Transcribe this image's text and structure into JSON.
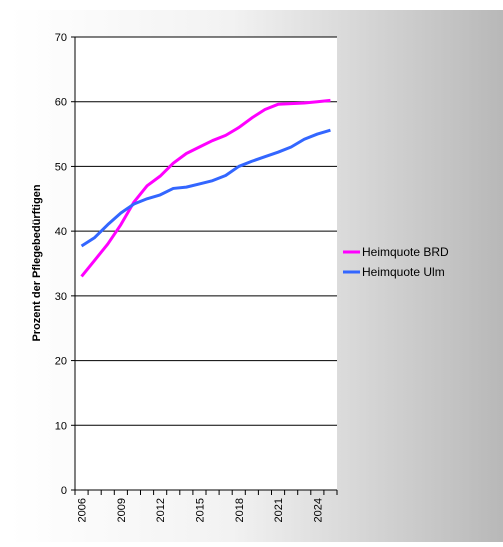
{
  "chart_data": {
    "type": "line",
    "y_label": "Prozent der Pflegebedürftigen",
    "categories": [
      "2006",
      null,
      null,
      "2009",
      null,
      null,
      "2012",
      null,
      null,
      "2015",
      null,
      null,
      "2018",
      null,
      null,
      "2021",
      null,
      null,
      "2024",
      null
    ],
    "series": [
      {
        "name": "Heimquote BRD",
        "color": "#ff00ff",
        "values": [
          33,
          35.5,
          38,
          41,
          44.5,
          47,
          48.5,
          50.5,
          52,
          53,
          54,
          54.8,
          56,
          57.5,
          58.8,
          59.6,
          59.7,
          59.8,
          60,
          60.2
        ]
      },
      {
        "name": "Heimquote Ulm",
        "color": "#3366ff",
        "values": [
          37.7,
          39,
          41,
          42.8,
          44.2,
          45,
          45.6,
          46.6,
          46.8,
          47.3,
          47.8,
          48.6,
          50,
          50.8,
          51.5,
          52.2,
          53,
          54.2,
          55,
          55.6
        ]
      }
    ],
    "ylim": [
      0,
      70
    ],
    "yticks": [
      0,
      10,
      20,
      30,
      40,
      50,
      60,
      70
    ],
    "grid": true
  }
}
